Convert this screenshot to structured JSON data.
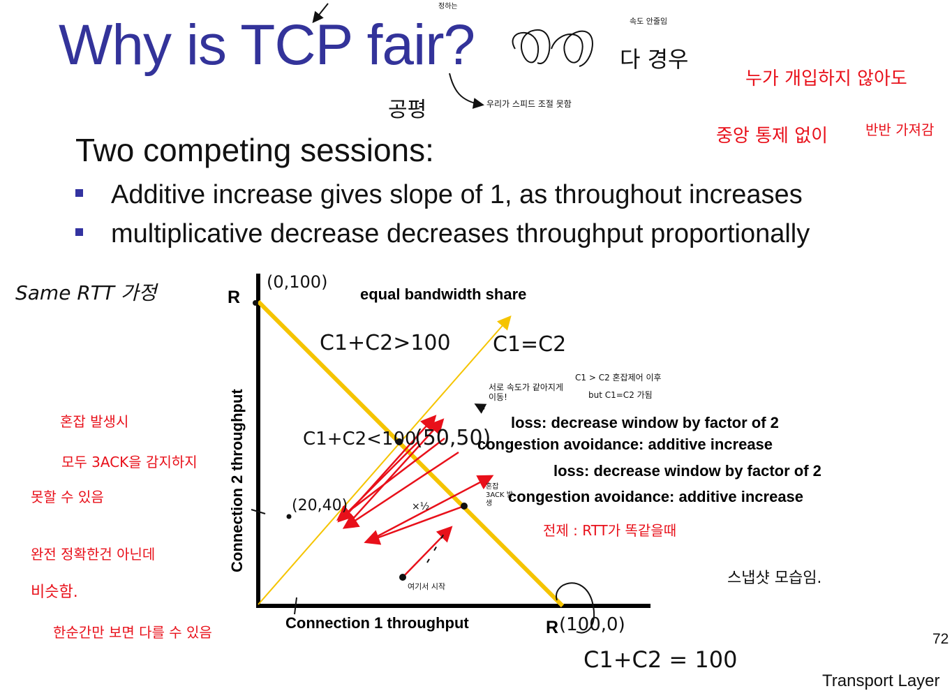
{
  "slide": {
    "title": "Why is TCP fair?",
    "subtitle": "Two competing sessions:",
    "bullets": [
      "Additive increase gives slope of 1, as throughout increases",
      "multiplicative decrease decreases throughput proportionally"
    ],
    "page_number": "72",
    "footer": "Transport Layer"
  },
  "diagram": {
    "r_label_y": "R",
    "r_label_x": "R",
    "equal_share_label": "equal bandwidth share",
    "y_axis_label": "Connection 2 throughput",
    "x_axis_label": "Connection 1 throughput",
    "annotations": [
      "loss: decrease window by factor of 2",
      "congestion avoidance: additive increase",
      "loss: decrease window by factor of 2",
      "congestion avoidance: additive increase"
    ],
    "colors": {
      "title": "#33339a",
      "capacity_line": "#f5c400",
      "equal_share_line": "#f5c400",
      "trajectory": "#e8101a",
      "axes": "#000000"
    }
  },
  "handwritten_notes": {
    "black": {
      "title_side_1": "공평",
      "title_side_2": "우리가 스피드 조절 못함",
      "title_right_small": "속도 안줄임",
      "title_right": "다 경우",
      "same_rtt": "Same RTT 가정",
      "y_top_point": "(0,100)",
      "sum_greater": "C1+C2>100",
      "c1_eq_c2": "C1=C2",
      "c1_gt_c2_note": "C1 > C2  혼잡제어 이후",
      "but_equal_note": "but C1=C2 가됨",
      "move_note": "서로 속도가 같아지게 이동!",
      "sum_less": "C1+C2<100",
      "point_50_50": "(50,50)",
      "point_20_40": "(20,40)",
      "times_half": "×½",
      "congestion_3ack": "혼잡 3ACK 발생",
      "start_note": "여기서 시작",
      "x_right_point": "(100,0)",
      "sum_equal": "C1+C2 = 100",
      "slow_start": "스냅샷 모습임."
    },
    "red": {
      "nobody_intervenes": "누가 개입하지 않아도",
      "no_central_control": "중앙 통제 없이",
      "half_each": "반반 가져감",
      "congestion_occurs": "혼잡 발생시",
      "all_3ack": "모두 3ACK을 감지하지",
      "cannot": "못할 수 있음",
      "not_exact": "완전 정확한건 아닌데",
      "similar": "비슷함.",
      "snapshot": "한순간만 보면 다를 수 있음",
      "premise": "전제 : RTT가 똑같을때"
    }
  }
}
